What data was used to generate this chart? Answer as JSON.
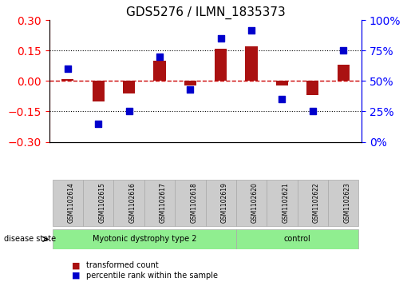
{
  "title": "GDS5276 / ILMN_1835373",
  "samples": [
    "GSM1102614",
    "GSM1102615",
    "GSM1102616",
    "GSM1102617",
    "GSM1102618",
    "GSM1102619",
    "GSM1102620",
    "GSM1102621",
    "GSM1102622",
    "GSM1102623"
  ],
  "transformed_count": [
    0.01,
    -0.1,
    -0.06,
    0.1,
    -0.02,
    0.16,
    0.17,
    -0.02,
    -0.07,
    0.08
  ],
  "percentile_rank": [
    60,
    15,
    25,
    70,
    43,
    85,
    92,
    35,
    25,
    75
  ],
  "bar_color": "#aa1111",
  "dot_color": "#0000cc",
  "ylim_left": [
    -0.3,
    0.3
  ],
  "ylim_right": [
    0,
    100
  ],
  "yticks_left": [
    -0.3,
    -0.15,
    0.0,
    0.15,
    0.3
  ],
  "yticks_right": [
    0,
    25,
    50,
    75,
    100
  ],
  "ytick_labels_right": [
    "0%",
    "25%",
    "50%",
    "75%",
    "100%"
  ],
  "disease_groups": [
    {
      "label": "Myotonic dystrophy type 2",
      "start": 0,
      "end": 6,
      "color": "#90ee90"
    },
    {
      "label": "control",
      "start": 6,
      "end": 10,
      "color": "#90ee90"
    }
  ],
  "disease_state_label": "disease state",
  "legend_items": [
    {
      "label": "transformed count",
      "color": "#aa1111",
      "marker": "s"
    },
    {
      "label": "percentile rank within the sample",
      "color": "#0000cc",
      "marker": "s"
    }
  ],
  "grid_color": "black",
  "zero_line_color": "#cc0000",
  "background_color": "white",
  "plot_bg": "white",
  "box_color": "#cccccc"
}
